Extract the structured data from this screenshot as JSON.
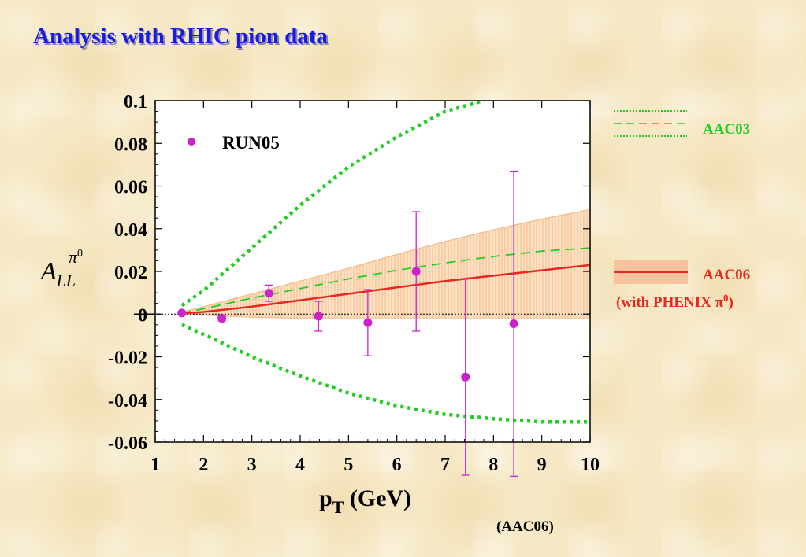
{
  "title": "Analysis with RHIC pion data",
  "colors": {
    "title": "#1a1ae0",
    "aac03": "#22cc22",
    "aac06": "#e8281e",
    "band": "#f7b98a",
    "run05": "#cc22cc"
  },
  "chart_data": {
    "type": "scatter",
    "xlabel_main": "p",
    "xlabel_sub": "T",
    "xlabel_unit": " (GeV)",
    "ylabel_main": "A",
    "ylabel_sub": "LL",
    "ylabel_sup": "π",
    "ylabel_sup2": "0",
    "xlim": [
      1,
      10
    ],
    "ylim": [
      -0.06,
      0.1
    ],
    "xticks": [
      "1",
      "2",
      "3",
      "4",
      "5",
      "6",
      "7",
      "8",
      "9",
      "10"
    ],
    "yticks": [
      "0.1",
      "0.08",
      "0.06",
      "0.04",
      "0.02",
      "0",
      "-0.02",
      "-0.04",
      "-0.06"
    ],
    "ytick_values": [
      0.1,
      0.08,
      0.06,
      0.04,
      0.02,
      0,
      -0.02,
      -0.04,
      -0.06
    ],
    "zero_line": true,
    "legend_inside": "RUN05",
    "legend_right": {
      "aac03": "AAC03",
      "aac06": "AAC06",
      "aac06_note_pre": "(with PHENIX π",
      "aac06_note_sup": "0",
      "aac06_note_post": ")"
    },
    "footnote": "(AAC06)",
    "series": [
      {
        "name": "RUN05",
        "style": "points",
        "x": [
          1.55,
          2.38,
          3.35,
          4.38,
          5.4,
          6.4,
          7.42,
          8.42
        ],
        "y": [
          0.0005,
          -0.002,
          0.0098,
          -0.001,
          -0.004,
          0.02,
          -0.0295,
          -0.0045
        ],
        "err": [
          0.0005,
          0.0012,
          0.0038,
          0.007,
          0.0155,
          0.028,
          0.046,
          0.0715
        ]
      },
      {
        "name": "AAC03",
        "style": "dotted-upper",
        "x": [
          1.55,
          2,
          3,
          4,
          5,
          6,
          7,
          7.8
        ],
        "y": [
          0.004,
          0.011,
          0.031,
          0.051,
          0.069,
          0.083,
          0.095,
          0.1
        ]
      },
      {
        "name": "AAC03",
        "style": "dashed",
        "x": [
          1.55,
          2,
          3,
          4,
          5,
          6,
          7,
          8,
          9,
          10
        ],
        "y": [
          0.0005,
          0.0025,
          0.0075,
          0.012,
          0.0165,
          0.0205,
          0.024,
          0.027,
          0.0295,
          0.031
        ]
      },
      {
        "name": "AAC03",
        "style": "dotted-lower",
        "x": [
          1.55,
          2,
          3,
          4,
          5,
          6,
          7,
          8,
          9,
          10
        ],
        "y": [
          -0.005,
          -0.0095,
          -0.02,
          -0.029,
          -0.037,
          -0.043,
          -0.047,
          -0.049,
          -0.0505,
          -0.0505
        ]
      },
      {
        "name": "AAC06",
        "style": "solid",
        "x": [
          1.55,
          2,
          3,
          4,
          5,
          6,
          7,
          8,
          9,
          10
        ],
        "y": [
          0.0003,
          0.001,
          0.0035,
          0.0065,
          0.0095,
          0.0125,
          0.0155,
          0.018,
          0.0205,
          0.023
        ]
      },
      {
        "name": "AAC06",
        "style": "band",
        "x": [
          1.55,
          2,
          3,
          4,
          5,
          6,
          7,
          8,
          9,
          10
        ],
        "upper": [
          0.001,
          0.0035,
          0.0095,
          0.0155,
          0.0215,
          0.028,
          0.034,
          0.0395,
          0.0445,
          0.049
        ],
        "lower": [
          0.0,
          -0.0005,
          -0.0015,
          -0.002,
          -0.0022,
          -0.0022,
          -0.0022,
          -0.0022,
          -0.0022,
          -0.0022
        ]
      }
    ]
  }
}
